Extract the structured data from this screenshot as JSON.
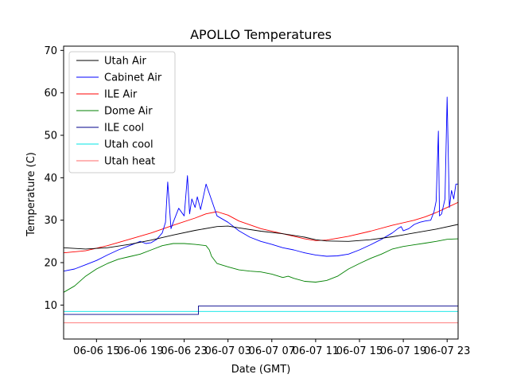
{
  "chart_data": {
    "type": "line",
    "title": "APOLLO Temperatures",
    "xlabel": "Date (GMT)",
    "ylabel": "Temperature (C)",
    "xlim": [
      12,
      48
    ],
    "ylim": [
      2,
      71
    ],
    "yticks": [
      10,
      20,
      30,
      40,
      50,
      60,
      70
    ],
    "xticks": [
      {
        "value": 15,
        "label": "06-06 15"
      },
      {
        "value": 19,
        "label": "06-06 19"
      },
      {
        "value": 23,
        "label": "06-06 23"
      },
      {
        "value": 27,
        "label": "06-07 03"
      },
      {
        "value": 31,
        "label": "06-07 07"
      },
      {
        "value": 35,
        "label": "06-07 11"
      },
      {
        "value": 39,
        "label": "06-07 15"
      },
      {
        "value": 43,
        "label": "06-07 19"
      },
      {
        "value": 47,
        "label": "06-07 23"
      }
    ],
    "x_unit_note": "x values are hours since 06-06 00:00 GMT",
    "legend_location": "upper-left",
    "series": [
      {
        "name": "Utah Air",
        "color": "#000000",
        "x": [
          12,
          14,
          16,
          18,
          20,
          22,
          24,
          26,
          27,
          28,
          30,
          32,
          34,
          35,
          36,
          38,
          40,
          42,
          44,
          46,
          48
        ],
        "y": [
          23.5,
          23.2,
          23.5,
          24.3,
          25.3,
          26.5,
          27.6,
          28.5,
          28.6,
          28.2,
          27.4,
          26.8,
          26.0,
          25.4,
          25.1,
          25.0,
          25.4,
          26.1,
          27.0,
          27.9,
          29.0
        ]
      },
      {
        "name": "Cabinet Air",
        "color": "#0000ff",
        "x": [
          12,
          13,
          14,
          15,
          16,
          17,
          18,
          19,
          19.5,
          20,
          20.5,
          21,
          21.3,
          21.5,
          21.8,
          22,
          22.5,
          23,
          23.3,
          23.5,
          23.7,
          24,
          24.2,
          24.5,
          25,
          26,
          27,
          28,
          29,
          30,
          31,
          32,
          33,
          34,
          35,
          36,
          37,
          38,
          39,
          40,
          41,
          42,
          42.5,
          42.8,
          43,
          43.5,
          44,
          44.5,
          45,
          45.5,
          45.8,
          46,
          46.2,
          46.3,
          46.5,
          46.8,
          47,
          47.2,
          47.4,
          47.6,
          47.8,
          48
        ],
        "y": [
          18,
          18.5,
          19.5,
          20.5,
          21.8,
          23,
          24,
          25,
          24.5,
          24.7,
          25.5,
          27,
          29.5,
          39,
          28,
          29.5,
          32.8,
          31,
          40.5,
          31.5,
          35,
          33,
          35.5,
          32.5,
          38.5,
          31,
          29.5,
          27.5,
          26,
          25,
          24.3,
          23.5,
          23,
          22.3,
          21.8,
          21.5,
          21.6,
          22,
          23,
          24.2,
          25.5,
          27,
          28,
          28.5,
          27.5,
          28,
          29,
          29.5,
          29.8,
          30,
          32,
          34.5,
          51,
          31,
          31.5,
          35,
          59,
          33,
          37,
          35,
          38.5,
          38.5
        ]
      },
      {
        "name": "ILE Air",
        "color": "#ff0000",
        "x": [
          12,
          14,
          16,
          18,
          20,
          22,
          24,
          25,
          26,
          27,
          28,
          30,
          32,
          34,
          35,
          36,
          38,
          40,
          42,
          44,
          45,
          46,
          47,
          48
        ],
        "y": [
          22.3,
          22.8,
          24,
          25.5,
          27,
          28.8,
          30.5,
          31.5,
          32,
          31.2,
          29.8,
          28,
          26.8,
          25.6,
          25.2,
          25.3,
          26.2,
          27.4,
          28.8,
          30,
          30.8,
          31.8,
          33,
          34.2
        ]
      },
      {
        "name": "Dome Air",
        "color": "#008000",
        "x": [
          12,
          13,
          14,
          15,
          16,
          17,
          18,
          19,
          20,
          21,
          22,
          23,
          24,
          25,
          25.3,
          25.5,
          26,
          27,
          28,
          29,
          30,
          31,
          32,
          32.5,
          33,
          34,
          35,
          36,
          37,
          38,
          39,
          40,
          41,
          42,
          43,
          44,
          45,
          46,
          47,
          48
        ],
        "y": [
          13,
          14.5,
          16.8,
          18.5,
          19.8,
          20.8,
          21.4,
          22,
          23,
          24,
          24.5,
          24.5,
          24.3,
          24.0,
          23.0,
          21.5,
          19.8,
          19,
          18.3,
          18,
          17.8,
          17.3,
          16.5,
          16.8,
          16.3,
          15.6,
          15.4,
          15.8,
          16.8,
          18.5,
          19.8,
          21,
          22,
          23.2,
          23.8,
          24.2,
          24.6,
          25,
          25.5,
          25.6
        ]
      },
      {
        "name": "ILE cool",
        "color": "#00008b",
        "x": [
          12,
          24.3,
          24.3,
          48
        ],
        "y": [
          7.8,
          7.8,
          9.8,
          9.8
        ]
      },
      {
        "name": "Utah cool",
        "color": "#00e5e5",
        "x": [
          12,
          48
        ],
        "y": [
          8.5,
          8.5
        ]
      },
      {
        "name": "Utah heat",
        "color": "#ff6a6a",
        "x": [
          12,
          48
        ],
        "y": [
          5.8,
          5.8
        ]
      }
    ]
  }
}
